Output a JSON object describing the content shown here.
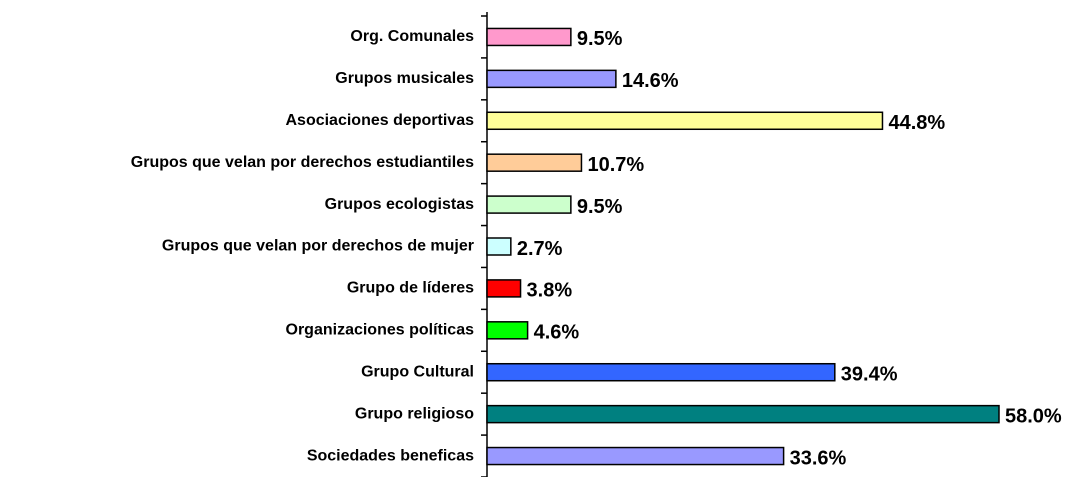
{
  "chart_data": {
    "type": "bar",
    "orientation": "horizontal",
    "categories": [
      "Org. Comunales",
      "Grupos musicales",
      "Asociaciones deportivas",
      "Grupos que velan por derechos estudiantiles",
      "Grupos ecologistas",
      "Grupos que velan por derechos de mujer",
      "Grupo de líderes",
      "Organizaciones políticas",
      "Grupo Cultural",
      "Grupo religioso",
      "Sociedades beneficas"
    ],
    "values": [
      9.5,
      14.6,
      44.8,
      10.7,
      9.5,
      2.7,
      3.8,
      4.6,
      39.4,
      58.0,
      33.6
    ],
    "value_labels": [
      "9.5%",
      "14.6%",
      "44.8%",
      "10.7%",
      "9.5%",
      "2.7%",
      "3.8%",
      "4.6%",
      "39.4%",
      "58.0%",
      "33.6%"
    ],
    "colors": [
      "#ff99cc",
      "#9999ff",
      "#ffff99",
      "#ffcc99",
      "#ccffcc",
      "#ccffff",
      "#ff0000",
      "#00ff00",
      "#3366ff",
      "#008080",
      "#9999ff"
    ]
  }
}
